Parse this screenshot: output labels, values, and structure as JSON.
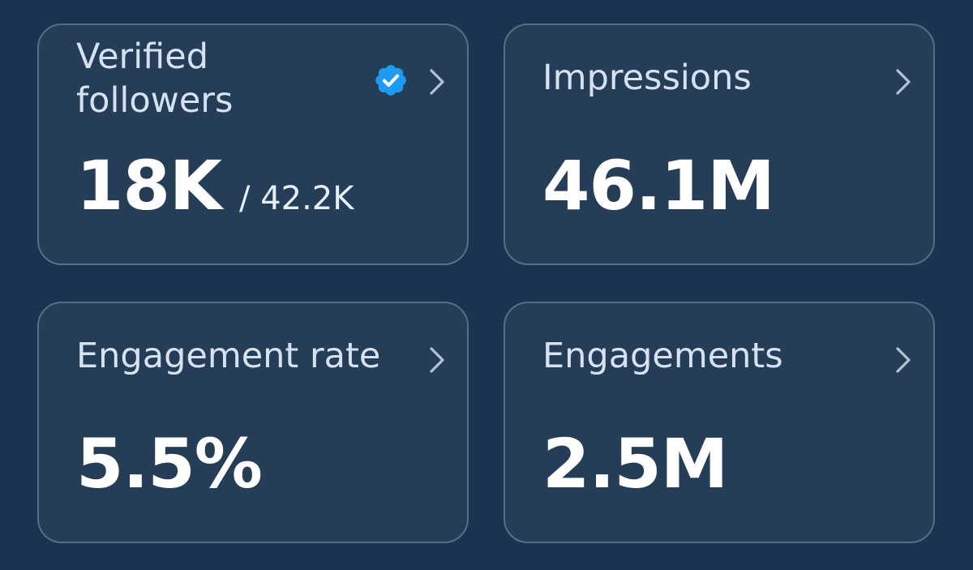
{
  "colors": {
    "background": "#1b3350",
    "card": "#263d58",
    "card_border": "#566f89",
    "verified_badge": "#1d9bf0"
  },
  "cards": [
    {
      "title_lines": [
        "Verified",
        "followers"
      ],
      "value": "18K",
      "sub_value": "/ 42.2K",
      "badge_icon": "verified-badge-icon",
      "chevron_icon": "chevron-right-icon"
    },
    {
      "title": "Impressions",
      "value": "46.1M",
      "chevron_icon": "chevron-right-icon"
    },
    {
      "title": "Engagement rate",
      "value": "5.5%",
      "chevron_icon": "chevron-right-icon"
    },
    {
      "title": "Engagements",
      "value": "2.5M",
      "chevron_icon": "chevron-right-icon"
    }
  ]
}
